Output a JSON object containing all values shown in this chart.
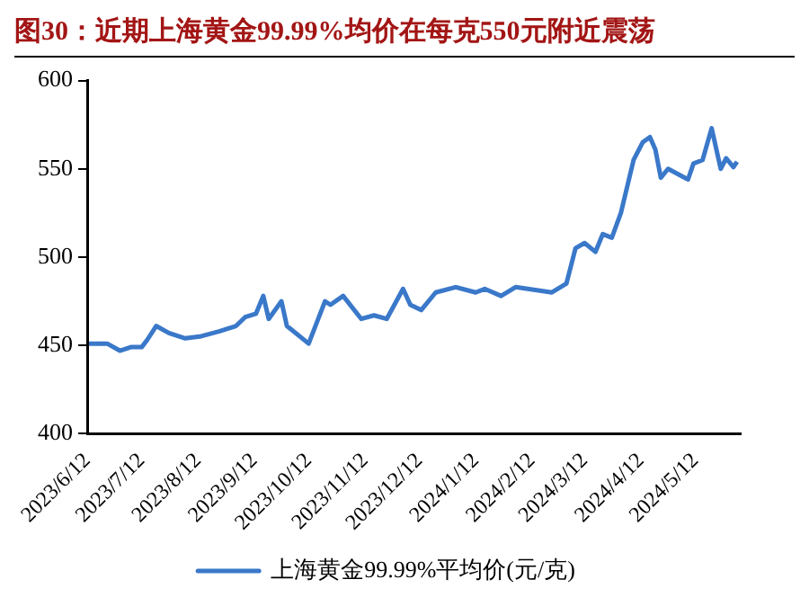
{
  "chart_data": {
    "type": "line",
    "title": "图30：近期上海黄金99.99%均价在每克550元附近震荡",
    "x": [
      "2023-06-13",
      "2023-06-23",
      "2023-06-30",
      "2023-07-06",
      "2023-07-12",
      "2023-07-15",
      "2023-07-20",
      "2023-07-27",
      "2023-08-02",
      "2023-08-05",
      "2023-08-13",
      "2023-08-24",
      "2023-09-02",
      "2023-09-07",
      "2023-09-13",
      "2023-09-17",
      "2023-09-20",
      "2023-09-27",
      "2023-09-30",
      "2023-10-12",
      "2023-10-21",
      "2023-10-24",
      "2023-10-31",
      "2023-11-10",
      "2023-11-17",
      "2023-11-24",
      "2023-12-03",
      "2023-12-07",
      "2023-12-13",
      "2023-12-21",
      "2024-01-01",
      "2024-01-12",
      "2024-01-17",
      "2024-01-26",
      "2024-02-03",
      "2024-02-23",
      "2024-03-02",
      "2024-03-07",
      "2024-03-12",
      "2024-03-18",
      "2024-03-22",
      "2024-03-27",
      "2024-04-01",
      "2024-04-08",
      "2024-04-13",
      "2024-04-17",
      "2024-04-20",
      "2024-04-23",
      "2024-04-27",
      "2024-05-08",
      "2024-05-11",
      "2024-05-16",
      "2024-05-21",
      "2024-05-26",
      "2024-05-29",
      "2024-06-02",
      "2024-06-04"
    ],
    "series": [
      {
        "name": "上海黄金99.99%平均价(元/克)",
        "color": "#3a78c9",
        "values": [
          451,
          451,
          447,
          449,
          449,
          453,
          461,
          457,
          455,
          454,
          455,
          458,
          461,
          466,
          468,
          478,
          465,
          475,
          461,
          451,
          475,
          473,
          478,
          465,
          467,
          465,
          482,
          473,
          470,
          480,
          483,
          480,
          482,
          478,
          483,
          480,
          485,
          505,
          508,
          503,
          513,
          511,
          525,
          555,
          565,
          568,
          561,
          545,
          550,
          544,
          553,
          555,
          573,
          550,
          556,
          551,
          554
        ]
      }
    ],
    "xlim": [
      "2023-06-12",
      "2024-06-06"
    ],
    "xticks": [
      {
        "value": "2023-06-12",
        "label": "2023/6/12"
      },
      {
        "value": "2023-07-12",
        "label": "2023/7/12"
      },
      {
        "value": "2023-08-12",
        "label": "2023/8/12"
      },
      {
        "value": "2023-09-12",
        "label": "2023/9/12"
      },
      {
        "value": "2023-10-12",
        "label": "2023/10/12"
      },
      {
        "value": "2023-11-12",
        "label": "2023/11/12"
      },
      {
        "value": "2023-12-12",
        "label": "2023/12/12"
      },
      {
        "value": "2024-01-12",
        "label": "2024/1/12"
      },
      {
        "value": "2024-02-12",
        "label": "2024/2/12"
      },
      {
        "value": "2024-03-12",
        "label": "2024/3/12"
      },
      {
        "value": "2024-04-12",
        "label": "2024/4/12"
      },
      {
        "value": "2024-05-12",
        "label": "2024/5/12"
      }
    ],
    "ylim": [
      400,
      600
    ],
    "yticks": [
      400,
      450,
      500,
      550,
      600
    ],
    "grid": false,
    "legend": "bottom",
    "marker": "none",
    "line_style": "solid"
  }
}
